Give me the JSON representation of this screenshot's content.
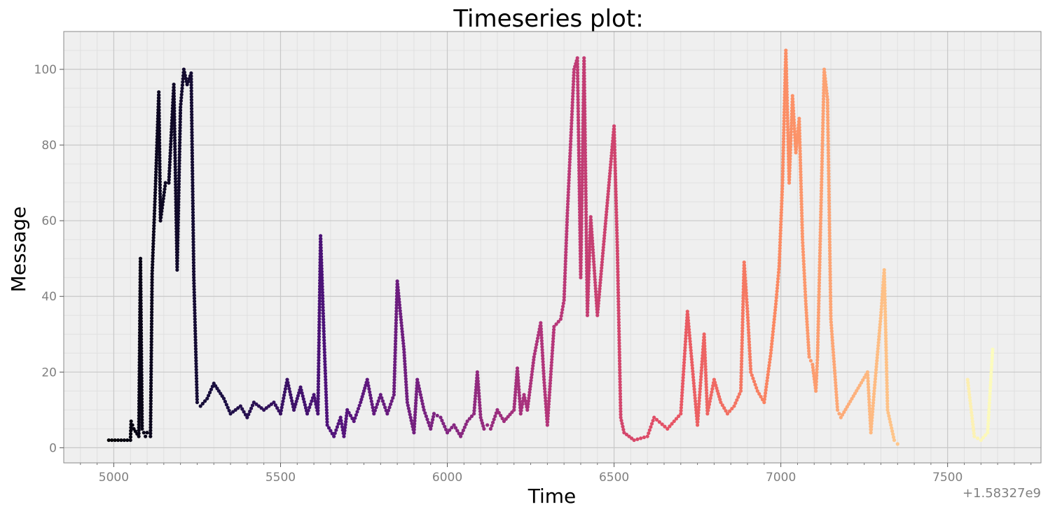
{
  "chart_data": {
    "type": "scatter",
    "title": "Timeseries plot:",
    "xlabel": "Time",
    "ylabel": "Message",
    "x_offset_label": "+1.58327e9",
    "xlim": [
      4850,
      7780
    ],
    "ylim": [
      -4,
      110
    ],
    "x_ticks": [
      5000,
      5500,
      6000,
      6500,
      7000,
      7500
    ],
    "x_tick_labels": [
      "5000",
      "5500",
      "6000",
      "6500",
      "7000",
      "7500"
    ],
    "y_ticks": [
      0,
      20,
      40,
      60,
      80,
      100
    ],
    "y_tick_labels": [
      "0",
      "20",
      "40",
      "60",
      "80",
      "100"
    ],
    "grid": true,
    "colormap": "magma",
    "colormap_range": [
      4985,
      7640
    ],
    "colors": {
      "plot_background": "#efefef",
      "grid_major": "#c8c8c8",
      "grid_minor": "#e0e0e0",
      "tick_label": "#808080"
    },
    "trace": [
      [
        4985,
        2
      ],
      [
        5050,
        2
      ],
      [
        5052,
        7
      ],
      [
        5060,
        5
      ],
      [
        5075,
        3
      ],
      [
        5080,
        50
      ],
      [
        5085,
        5
      ],
      [
        5095,
        3
      ],
      [
        5100,
        4
      ],
      [
        5110,
        3
      ],
      [
        5115,
        46
      ],
      [
        5125,
        69
      ],
      [
        5135,
        94
      ],
      [
        5140,
        60
      ],
      [
        5155,
        70
      ],
      [
        5165,
        70
      ],
      [
        5180,
        96
      ],
      [
        5190,
        47
      ],
      [
        5200,
        90
      ],
      [
        5210,
        100
      ],
      [
        5220,
        96
      ],
      [
        5232,
        99
      ],
      [
        5240,
        45
      ],
      [
        5250,
        12
      ],
      [
        5260,
        11
      ],
      [
        5280,
        13
      ],
      [
        5300,
        17
      ],
      [
        5330,
        13
      ],
      [
        5350,
        9
      ],
      [
        5380,
        11
      ],
      [
        5400,
        8
      ],
      [
        5420,
        12
      ],
      [
        5450,
        10
      ],
      [
        5480,
        12
      ],
      [
        5500,
        9
      ],
      [
        5520,
        18
      ],
      [
        5540,
        10
      ],
      [
        5560,
        16
      ],
      [
        5580,
        9
      ],
      [
        5600,
        14
      ],
      [
        5612,
        9
      ],
      [
        5620,
        56
      ],
      [
        5630,
        30
      ],
      [
        5640,
        6
      ],
      [
        5660,
        3
      ],
      [
        5680,
        8
      ],
      [
        5690,
        3
      ],
      [
        5700,
        10
      ],
      [
        5720,
        7
      ],
      [
        5740,
        12
      ],
      [
        5760,
        18
      ],
      [
        5780,
        9
      ],
      [
        5800,
        14
      ],
      [
        5820,
        9
      ],
      [
        5840,
        14
      ],
      [
        5850,
        44
      ],
      [
        5870,
        26
      ],
      [
        5880,
        12
      ],
      [
        5900,
        4
      ],
      [
        5910,
        18
      ],
      [
        5930,
        10
      ],
      [
        5950,
        5
      ],
      [
        5960,
        9
      ],
      [
        5980,
        8
      ],
      [
        6000,
        4
      ],
      [
        6020,
        6
      ],
      [
        6040,
        3
      ],
      [
        6060,
        7
      ],
      [
        6080,
        9
      ],
      [
        6090,
        20
      ],
      [
        6100,
        8
      ],
      [
        6110,
        5
      ],
      [
        6120,
        6
      ],
      [
        6130,
        5
      ],
      [
        6150,
        10
      ],
      [
        6170,
        7
      ],
      [
        6200,
        10
      ],
      [
        6210,
        21
      ],
      [
        6220,
        9
      ],
      [
        6230,
        14
      ],
      [
        6240,
        10
      ],
      [
        6260,
        24
      ],
      [
        6280,
        33
      ],
      [
        6290,
        18
      ],
      [
        6300,
        6
      ],
      [
        6320,
        32
      ],
      [
        6340,
        34
      ],
      [
        6350,
        39
      ],
      [
        6360,
        62
      ],
      [
        6380,
        100
      ],
      [
        6390,
        103
      ],
      [
        6400,
        45
      ],
      [
        6410,
        103
      ],
      [
        6420,
        35
      ],
      [
        6430,
        61
      ],
      [
        6450,
        35
      ],
      [
        6500,
        85
      ],
      [
        6510,
        52
      ],
      [
        6520,
        8
      ],
      [
        6530,
        4
      ],
      [
        6560,
        2
      ],
      [
        6600,
        3
      ],
      [
        6620,
        8
      ],
      [
        6660,
        5
      ],
      [
        6700,
        9
      ],
      [
        6720,
        36
      ],
      [
        6750,
        6
      ],
      [
        6770,
        30
      ],
      [
        6780,
        9
      ],
      [
        6800,
        18
      ],
      [
        6820,
        12
      ],
      [
        6840,
        9
      ],
      [
        6860,
        11
      ],
      [
        6880,
        15
      ],
      [
        6890,
        49
      ],
      [
        6900,
        36
      ],
      [
        6910,
        20
      ],
      [
        6930,
        15
      ],
      [
        6950,
        12
      ],
      [
        6970,
        25
      ],
      [
        6985,
        38
      ],
      [
        6995,
        48
      ],
      [
        7005,
        70
      ],
      [
        7015,
        105
      ],
      [
        7025,
        70
      ],
      [
        7035,
        93
      ],
      [
        7045,
        78
      ],
      [
        7055,
        87
      ],
      [
        7065,
        55
      ],
      [
        7075,
        38
      ],
      [
        7085,
        24
      ],
      [
        7095,
        22
      ],
      [
        7105,
        15
      ],
      [
        7110,
        24
      ],
      [
        7130,
        100
      ],
      [
        7140,
        92
      ],
      [
        7150,
        34
      ],
      [
        7160,
        22
      ],
      [
        7170,
        10
      ],
      [
        7180,
        8
      ],
      [
        7260,
        20
      ],
      [
        7270,
        4
      ],
      [
        7280,
        15
      ],
      [
        7300,
        35
      ],
      [
        7310,
        47
      ],
      [
        7320,
        10
      ],
      [
        7340,
        2
      ],
      [
        7350,
        1
      ],
      [
        7560,
        18
      ],
      [
        7580,
        3
      ],
      [
        7600,
        2
      ],
      [
        7620,
        4
      ],
      [
        7635,
        26
      ]
    ]
  }
}
